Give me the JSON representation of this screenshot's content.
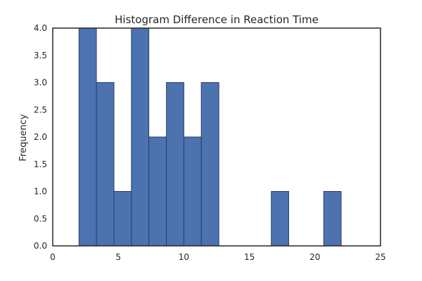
{
  "chart_data": {
    "type": "bar",
    "title": "Histogram Difference in Reaction Time",
    "xlabel": "",
    "ylabel": "Frequency",
    "xlim": [
      0,
      25
    ],
    "ylim": [
      0,
      4
    ],
    "grid": false,
    "legend": "none",
    "bar_color": "#4c72b0",
    "bins": [
      {
        "start": 2.0,
        "end": 3.33,
        "count": 4
      },
      {
        "start": 3.33,
        "end": 4.67,
        "count": 3
      },
      {
        "start": 4.67,
        "end": 6.0,
        "count": 1
      },
      {
        "start": 6.0,
        "end": 7.33,
        "count": 4
      },
      {
        "start": 7.33,
        "end": 8.67,
        "count": 2
      },
      {
        "start": 8.67,
        "end": 10.0,
        "count": 3
      },
      {
        "start": 10.0,
        "end": 11.33,
        "count": 2
      },
      {
        "start": 11.33,
        "end": 12.67,
        "count": 3
      },
      {
        "start": 12.67,
        "end": 14.0,
        "count": 0
      },
      {
        "start": 14.0,
        "end": 15.33,
        "count": 0
      },
      {
        "start": 15.33,
        "end": 16.67,
        "count": 0
      },
      {
        "start": 16.67,
        "end": 18.0,
        "count": 1
      },
      {
        "start": 18.0,
        "end": 19.33,
        "count": 0
      },
      {
        "start": 19.33,
        "end": 20.67,
        "count": 0
      },
      {
        "start": 20.67,
        "end": 22.0,
        "count": 1
      }
    ],
    "x_ticks": [
      "0",
      "5",
      "10",
      "15",
      "20",
      "25"
    ],
    "y_ticks": [
      "0.0",
      "0.5",
      "1.0",
      "1.5",
      "2.0",
      "2.5",
      "3.0",
      "3.5",
      "4.0"
    ]
  }
}
